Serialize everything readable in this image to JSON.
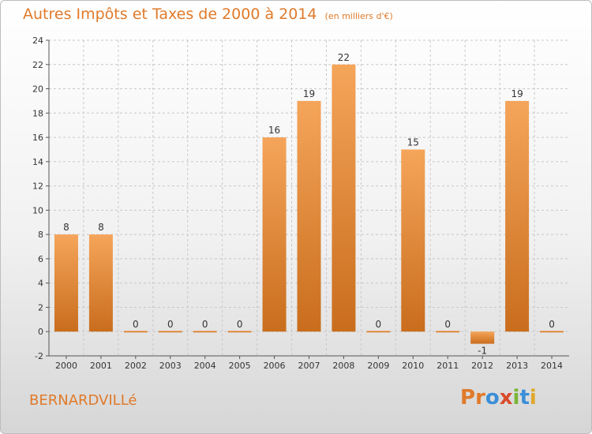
{
  "header": {
    "title": "Autres Impôts et Taxes de 2000 à 2014",
    "unit": "(en milliers d'€)"
  },
  "footer": {
    "commune": "BERNARDVILLé",
    "brand_letters": [
      "P",
      "r",
      "o",
      "x",
      "i",
      "t",
      "i"
    ],
    "brand_colors": [
      "#e07a2a",
      "#e07a2a",
      "#3b8ed8",
      "#d94b2b",
      "#7ab536",
      "#3b8ed8",
      "#e0a72a"
    ]
  },
  "colors": {
    "accent": "#e07a2a",
    "bar_light": "#f5a55a",
    "bar_dark": "#c96d1d",
    "axis": "#555555",
    "grid": "#c8c8c8"
  },
  "chart_data": {
    "type": "bar",
    "categories": [
      "2000",
      "2001",
      "2002",
      "2003",
      "2004",
      "2005",
      "2006",
      "2007",
      "2008",
      "2009",
      "2010",
      "2011",
      "2012",
      "2013",
      "2014"
    ],
    "values": [
      8,
      8,
      0,
      0,
      0,
      0,
      16,
      19,
      22,
      0,
      15,
      0,
      -1,
      19,
      0
    ],
    "data_labels": [
      "8",
      "8",
      "0",
      "0",
      "0",
      "0",
      "16",
      "19",
      "22",
      "0",
      "15",
      "0",
      "-1",
      "19",
      "0"
    ],
    "yticks": [
      "-2",
      "0",
      "2",
      "4",
      "6",
      "8",
      "10",
      "12",
      "14",
      "16",
      "18",
      "20",
      "22",
      "24"
    ],
    "ylim": [
      -2,
      24
    ],
    "grid": "horizontal-dashed"
  }
}
